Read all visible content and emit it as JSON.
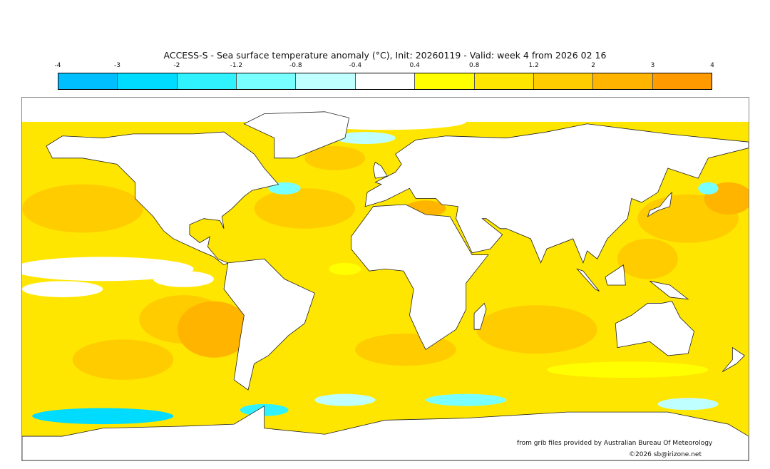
{
  "title": "ACCESS-S - Sea surface temperature anomaly (°C), Init: 20260119 - Valid: week 4 from 2026 02 16",
  "legend": {
    "ticks": [
      "-4",
      "-3",
      "-2",
      "-1.2",
      "-0.8",
      "-0.4",
      "0.4",
      "0.8",
      "1.2",
      "2",
      "3",
      "4"
    ],
    "colors": [
      "#00bfff",
      "#00dcff",
      "#30f2ff",
      "#78ffff",
      "#bfffff",
      "#ffffff",
      "#ffff00",
      "#ffe600",
      "#ffcc00",
      "#ffb400",
      "#ff9a00"
    ]
  },
  "credits": {
    "source": "from grib files provided by Australian Bureau Of Meteorology",
    "copyright": "©2026 sb@irizone.net"
  }
}
